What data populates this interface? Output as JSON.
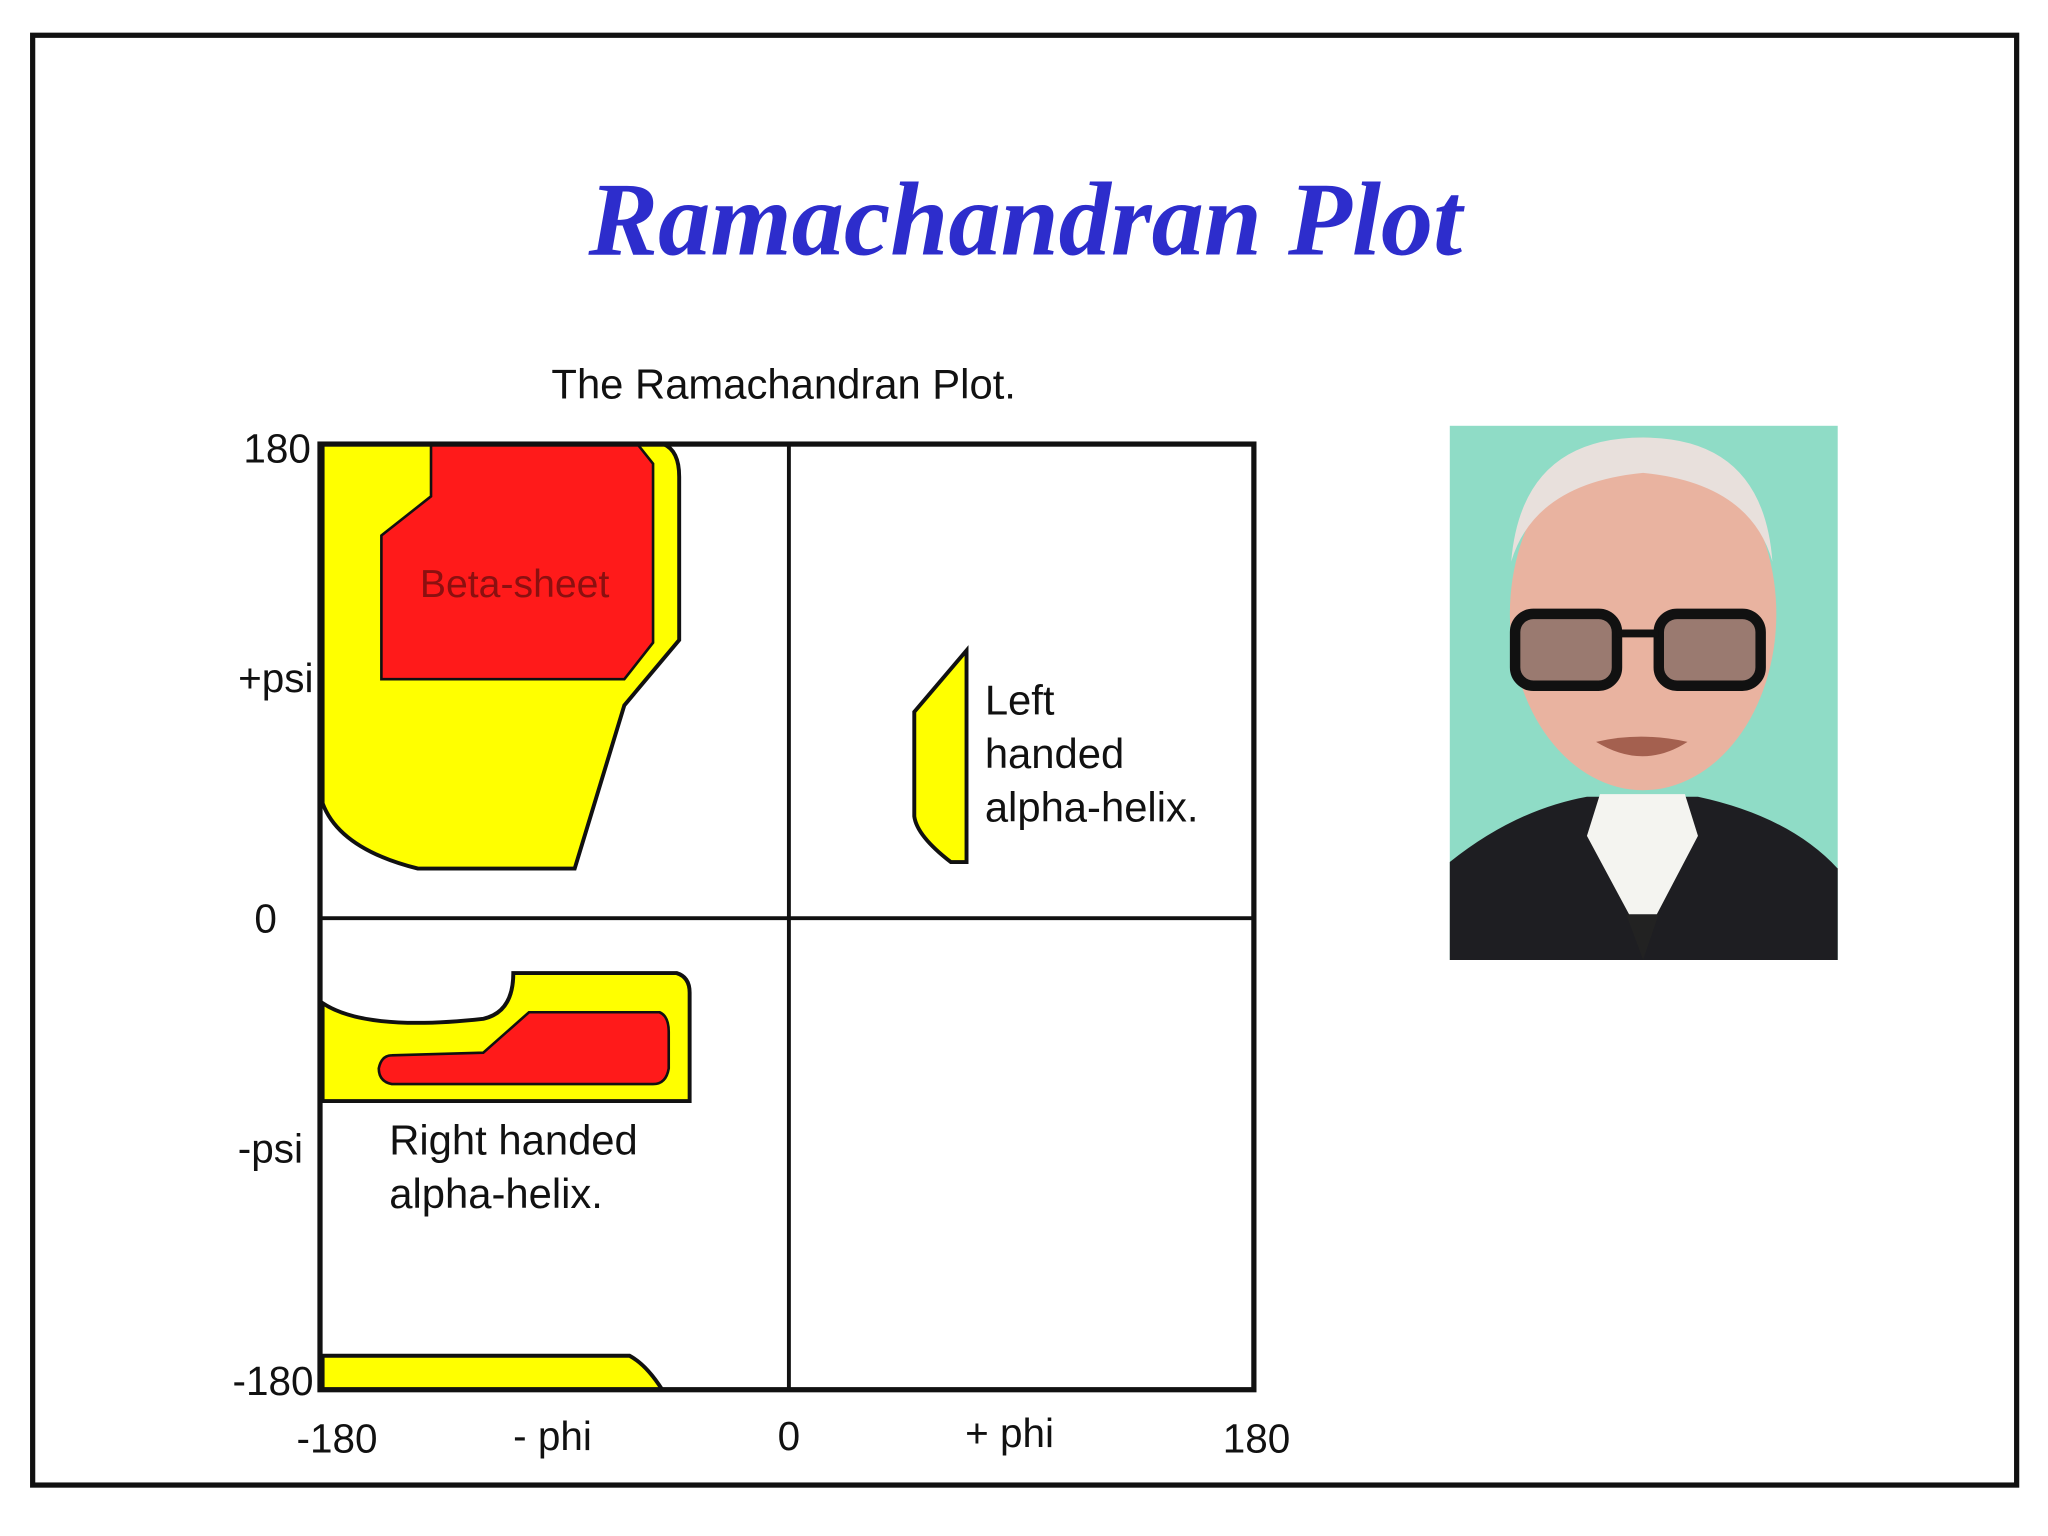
{
  "slide": {
    "title": "Ramachandran Plot"
  },
  "plot": {
    "title": "The Ramachandran Plot.",
    "y_labels": [
      "180",
      "+psi",
      "0",
      "-psi",
      "-180"
    ],
    "x_labels": [
      "-180",
      "- phi",
      "0",
      "+ phi",
      "180"
    ],
    "beta_sheet": {
      "label": "Beta-sheet"
    },
    "left_helix": {
      "label_lines": [
        "Left",
        "handed",
        "alpha-helix."
      ]
    },
    "right_helix": {
      "label_lines": [
        "Right handed",
        "alpha-helix."
      ]
    }
  }
}
